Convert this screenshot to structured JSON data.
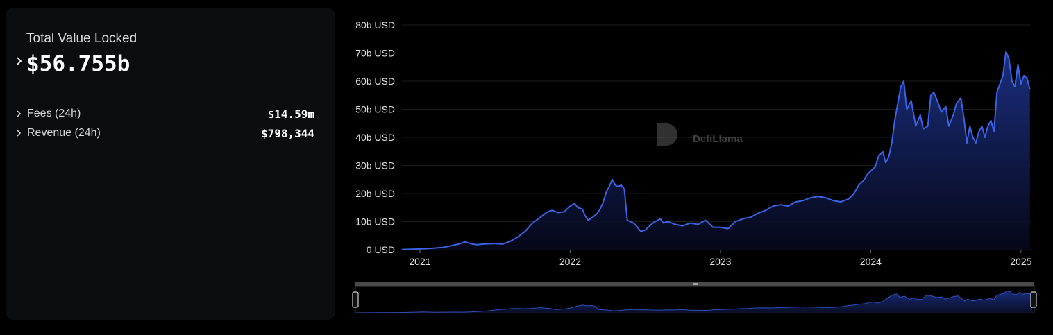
{
  "summary": {
    "tvl_label": "Total Value Locked",
    "tvl_value": "$56.755b",
    "metrics": [
      {
        "label": "Fees (24h)",
        "value": "$14.59m"
      },
      {
        "label": "Revenue (24h)",
        "value": "$798,344"
      }
    ]
  },
  "watermark": "DefiLlama",
  "colors": {
    "line": "#3b63e6",
    "area_top": "#1c3186",
    "area_bottom": "#06081a",
    "panel": "#0b0d0e"
  },
  "chart_data": {
    "type": "area",
    "title": "",
    "xlabel": "",
    "ylabel": "",
    "y_unit": "b USD",
    "ylim": [
      0,
      80
    ],
    "y_ticks": [
      0,
      10,
      20,
      30,
      40,
      50,
      60,
      70,
      80
    ],
    "y_tick_labels": [
      "0 USD",
      "10b USD",
      "20b USD",
      "30b USD",
      "40b USD",
      "50b USD",
      "60b USD",
      "70b USD",
      "80b USD"
    ],
    "x_ticks": [
      2021,
      2022,
      2023,
      2024,
      2025
    ],
    "x_tick_labels": [
      "2021",
      "2022",
      "2023",
      "2024",
      "2025"
    ],
    "xlim": [
      2020.88,
      2025.07
    ],
    "grid": true,
    "series": [
      {
        "x": [
          2020.88,
          2020.95,
          2021.05,
          2021.15,
          2021.2,
          2021.27,
          2021.3,
          2021.35,
          2021.38,
          2021.42,
          2021.5,
          2021.55,
          2021.6,
          2021.65,
          2021.7,
          2021.75,
          2021.8,
          2021.85,
          2021.88,
          2021.92,
          2021.96,
          2022.0,
          2022.03,
          2022.05,
          2022.08,
          2022.1,
          2022.12,
          2022.15,
          2022.18,
          2022.2,
          2022.22,
          2022.24,
          2022.26,
          2022.28,
          2022.3,
          2022.32,
          2022.34,
          2022.36,
          2022.38,
          2022.4,
          2022.42,
          2022.44,
          2022.47,
          2022.5,
          2022.55,
          2022.6,
          2022.62,
          2022.65,
          2022.7,
          2022.75,
          2022.8,
          2022.85,
          2022.9,
          2022.95,
          2023.0,
          2023.05,
          2023.1,
          2023.15,
          2023.2,
          2023.25,
          2023.3,
          2023.35,
          2023.4,
          2023.45,
          2023.5,
          2023.55,
          2023.6,
          2023.65,
          2023.7,
          2023.75,
          2023.8,
          2023.85,
          2023.88,
          2023.9,
          2023.92,
          2023.95,
          2023.98,
          2024.0,
          2024.03,
          2024.05,
          2024.08,
          2024.1,
          2024.12,
          2024.14,
          2024.16,
          2024.18,
          2024.2,
          2024.22,
          2024.24,
          2024.27,
          2024.3,
          2024.33,
          2024.35,
          2024.38,
          2024.4,
          2024.42,
          2024.45,
          2024.47,
          2024.5,
          2024.52,
          2024.55,
          2024.57,
          2024.6,
          2024.62,
          2024.64,
          2024.66,
          2024.68,
          2024.7,
          2024.72,
          2024.74,
          2024.76,
          2024.78,
          2024.8,
          2024.82,
          2024.84,
          2024.86,
          2024.88,
          2024.9,
          2024.92,
          2024.94,
          2024.96,
          2024.98,
          2025.0,
          2025.02,
          2025.04,
          2025.06
        ],
        "y": [
          0.1,
          0.2,
          0.4,
          0.8,
          1.3,
          2.2,
          2.8,
          2.0,
          1.8,
          2.0,
          2.2,
          2.0,
          3.0,
          4.5,
          6.5,
          9.5,
          11.5,
          13.5,
          14.0,
          13.2,
          13.5,
          15.5,
          16.5,
          15.0,
          14.5,
          12.0,
          10.5,
          11.5,
          13.0,
          14.5,
          17.0,
          20.5,
          22.5,
          25.0,
          23.0,
          22.5,
          23.0,
          21.5,
          10.5,
          10.0,
          9.5,
          8.5,
          6.5,
          7.0,
          9.5,
          11.0,
          9.5,
          10.0,
          9.0,
          8.5,
          9.5,
          9.0,
          10.5,
          8.0,
          8.0,
          7.5,
          10.0,
          11.0,
          11.5,
          13.0,
          14.0,
          15.5,
          16.0,
          15.5,
          17.0,
          17.5,
          18.5,
          19.0,
          18.5,
          17.5,
          17.0,
          18.0,
          19.5,
          21.0,
          23.0,
          24.5,
          27.0,
          28.0,
          29.5,
          33.0,
          35.0,
          31.0,
          33.0,
          38.0,
          46.0,
          52.0,
          58.0,
          60.0,
          50.0,
          53.0,
          44.0,
          48.0,
          43.0,
          44.0,
          55.0,
          56.0,
          52.0,
          49.0,
          51.0,
          44.0,
          48.0,
          52.0,
          54.0,
          47.0,
          38.0,
          44.0,
          40.0,
          38.0,
          42.0,
          44.0,
          40.0,
          44.0,
          46.0,
          42.0,
          56.0,
          59.0,
          62.0,
          70.5,
          68.0,
          60.0,
          58.0,
          66.0,
          59.0,
          62.0,
          61.0,
          57.0
        ]
      }
    ]
  }
}
